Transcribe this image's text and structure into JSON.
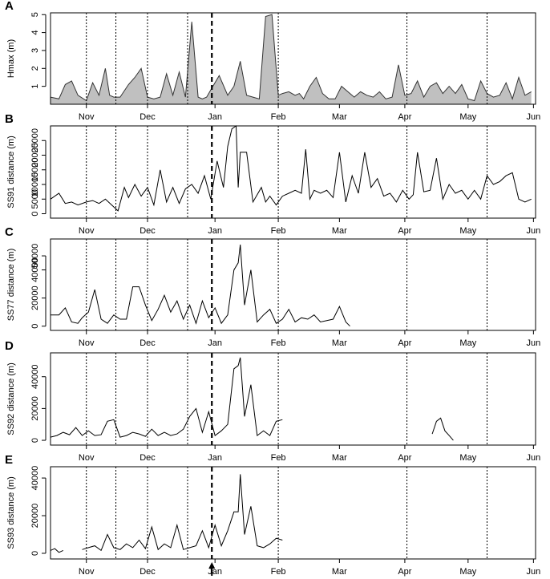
{
  "chart_data": [
    {
      "type": "area",
      "panel_label": "A",
      "ylabel": "Hmax (m)",
      "yticks": [
        1,
        2,
        3,
        4,
        5
      ],
      "ylim": [
        0,
        5.1
      ],
      "xlim": [
        0,
        230
      ],
      "fill_color": "#c0c0c0",
      "x": [
        0,
        4,
        7,
        10,
        13,
        17,
        20,
        23,
        26,
        28,
        30,
        33,
        37,
        40,
        43,
        46,
        49,
        52,
        55,
        58,
        61,
        64,
        67,
        70,
        72,
        74,
        77,
        80,
        84,
        87,
        90,
        93,
        96,
        99,
        102,
        105,
        108,
        110,
        113,
        116,
        118,
        120,
        123,
        126,
        129,
        132,
        135,
        138,
        141,
        144,
        147,
        150,
        153,
        156,
        159,
        162,
        165,
        168,
        171,
        174,
        177,
        180,
        183,
        186,
        189,
        192,
        195,
        198,
        201,
        204,
        207,
        210,
        213,
        216,
        219,
        222,
        225,
        228
      ],
      "values": [
        0.4,
        0.3,
        1.1,
        1.3,
        0.5,
        0.2,
        1.2,
        0.5,
        2.0,
        0.5,
        0.4,
        0.4,
        1.1,
        1.5,
        2.0,
        0.4,
        0.3,
        0.4,
        1.7,
        0.5,
        1.8,
        0.4,
        4.6,
        0.4,
        0.3,
        0.4,
        1.0,
        1.6,
        0.5,
        1.0,
        2.4,
        0.5,
        0.4,
        0.3,
        4.9,
        5.0,
        0.5,
        0.6,
        0.7,
        0.5,
        0.6,
        0.3,
        1.0,
        1.5,
        0.6,
        0.3,
        0.3,
        1.0,
        0.7,
        0.4,
        0.7,
        0.5,
        0.4,
        0.7,
        0.3,
        0.4,
        2.2,
        0.5,
        0.6,
        1.3,
        0.4,
        1.0,
        1.2,
        0.6,
        1.0,
        0.6,
        1.1,
        0.3,
        0.2,
        1.3,
        0.6,
        0.4,
        0.5,
        1.2,
        0.3,
        1.5,
        0.5,
        0.7
      ]
    },
    {
      "type": "line",
      "panel_label": "B",
      "ylabel": "SS91 distance (m)",
      "yticks": [
        0,
        5000,
        10000,
        15000,
        20000,
        25000
      ],
      "ylim": [
        -1500,
        30000
      ],
      "xlim": [
        0,
        230
      ],
      "x": [
        0,
        4,
        7,
        10,
        13,
        17,
        20,
        23,
        26,
        29,
        32,
        35,
        37,
        40,
        43,
        46,
        49,
        52,
        55,
        58,
        61,
        64,
        67,
        70,
        73,
        76,
        79,
        82,
        84,
        86,
        88,
        89,
        90,
        93,
        96,
        98,
        100,
        102,
        104,
        107,
        110,
        113,
        116,
        119,
        121,
        123,
        125,
        128,
        131,
        134,
        137,
        140,
        143,
        146,
        149,
        152,
        155,
        158,
        161,
        164,
        167,
        170,
        172,
        174,
        177,
        180,
        183,
        186,
        189,
        192,
        195,
        198,
        201,
        204,
        207,
        210,
        213,
        216,
        219,
        222,
        225,
        228
      ],
      "values": [
        5000,
        7000,
        3500,
        4000,
        3000,
        4000,
        4500,
        3500,
        5000,
        3000,
        1000,
        9000,
        5500,
        10000,
        6000,
        9000,
        3000,
        15000,
        4000,
        9000,
        3500,
        8500,
        10000,
        7000,
        13000,
        5000,
        18000,
        9000,
        23000,
        29000,
        30000,
        9000,
        21000,
        21000,
        4000,
        6500,
        9000,
        4000,
        6000,
        3000,
        6000,
        7000,
        8000,
        7000,
        22000,
        5000,
        8000,
        7000,
        8000,
        5500,
        21000,
        4000,
        13000,
        7000,
        21000,
        9000,
        12000,
        6000,
        7000,
        4000,
        8000,
        5000,
        6500,
        21000,
        7500,
        8000,
        19000,
        5000,
        10000,
        7000,
        8000,
        5000,
        8000,
        5000,
        13000,
        10000,
        11000,
        13000,
        14000,
        5000,
        4000,
        5000
      ]
    },
    {
      "type": "line",
      "panel_label": "C",
      "ylabel": "SS77 distance (m)",
      "yticks": [
        0,
        20000,
        40000,
        50000
      ],
      "ylim": [
        -3000,
        62000
      ],
      "xlim": [
        0,
        230
      ],
      "x": [
        0,
        4,
        7,
        10,
        13,
        15,
        18,
        21,
        24,
        27,
        30,
        33,
        36,
        39,
        42,
        45,
        48,
        51,
        54,
        57,
        60,
        63,
        66,
        69,
        72,
        75,
        78,
        81,
        84,
        87,
        89,
        90,
        92,
        95,
        98,
        101,
        104,
        107,
        110,
        113,
        116,
        119,
        122,
        125,
        128,
        131,
        134,
        137,
        140,
        142
      ],
      "values": [
        8000,
        8000,
        13000,
        3000,
        2000,
        6000,
        10000,
        26000,
        5000,
        2000,
        8000,
        5000,
        5000,
        28000,
        28000,
        15000,
        4000,
        12000,
        22000,
        10000,
        18000,
        5000,
        15000,
        2000,
        18000,
        6000,
        13000,
        2000,
        8000,
        40000,
        45000,
        58000,
        15000,
        40000,
        3000,
        8000,
        12000,
        2000,
        5000,
        12000,
        3000,
        6000,
        5000,
        8000,
        3000,
        4000,
        5000,
        14000,
        3000,
        0
      ]
    },
    {
      "type": "line",
      "panel_label": "D",
      "ylabel": "SS92 distance (m)",
      "yticks": [
        0,
        20000,
        40000
      ],
      "ylim": [
        -3000,
        55000
      ],
      "xlim": [
        0,
        230
      ],
      "x": [
        0,
        3,
        6,
        9,
        12,
        15,
        18,
        21,
        24,
        27,
        30,
        33,
        36,
        39,
        42,
        45,
        48,
        51,
        54,
        57,
        60,
        63,
        66,
        69,
        72,
        75,
        78,
        81,
        84,
        87,
        89,
        90,
        92,
        95,
        98,
        101,
        104,
        107,
        110
      ],
      "values": [
        2000,
        3000,
        5000,
        3500,
        8000,
        3000,
        6000,
        3000,
        3500,
        12000,
        13000,
        2000,
        3000,
        5000,
        4000,
        2500,
        7000,
        3000,
        5000,
        3000,
        4000,
        7000,
        15000,
        20000,
        5000,
        18000,
        3000,
        6000,
        10000,
        45000,
        47000,
        52000,
        15000,
        35000,
        3000,
        6000,
        3000,
        12000,
        13000
      ],
      "gap_after_x": 110,
      "x2": [
        181,
        183,
        185,
        187,
        189,
        191
      ],
      "values2": [
        4000,
        12000,
        14000,
        6000,
        3000,
        0
      ]
    },
    {
      "type": "line",
      "panel_label": "E",
      "ylabel": "SS93 distance (m)",
      "yticks": [
        0,
        20000,
        40000
      ],
      "ylim": [
        -3000,
        46000
      ],
      "xlim": [
        0,
        230
      ],
      "x1": [
        0,
        2,
        4,
        6
      ],
      "values1": [
        1500,
        2500,
        500,
        1500
      ],
      "x": [
        15,
        18,
        21,
        24,
        27,
        30,
        33,
        36,
        39,
        42,
        45,
        48,
        51,
        54,
        57,
        60,
        63,
        66,
        69,
        72,
        75,
        78,
        81,
        84,
        87,
        89,
        90,
        92,
        95,
        98,
        101,
        104,
        107,
        110
      ],
      "values": [
        2000,
        3000,
        4000,
        1500,
        10000,
        3000,
        2000,
        5000,
        3000,
        7000,
        2500,
        14000,
        2000,
        5000,
        3000,
        15000,
        2000,
        3000,
        4000,
        12000,
        3000,
        15000,
        4000,
        12000,
        22000,
        22000,
        42000,
        10000,
        25000,
        4000,
        3000,
        5000,
        8000,
        7000
      ]
    }
  ],
  "x_axis": {
    "tick_labels": [
      "Nov",
      "Dec",
      "Jan",
      "Feb",
      "Mar",
      "Apr",
      "May",
      "Jun"
    ],
    "tick_positions": [
      17,
      46,
      78,
      108,
      137,
      168,
      198,
      229
    ],
    "dotted_event_lines": [
      17,
      31,
      46,
      65,
      108,
      169,
      207
    ],
    "dashed_event_line": 76.5
  },
  "marker_arrow": {
    "symbol": "up-arrow",
    "x": 76.5,
    "color": "#000000"
  }
}
